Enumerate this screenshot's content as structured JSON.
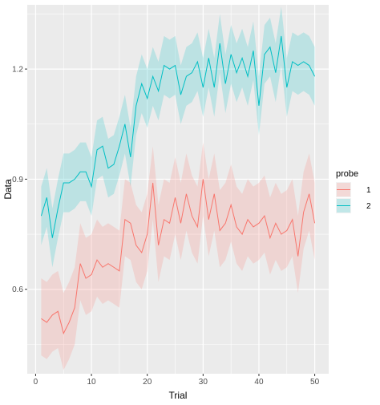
{
  "chart_data": {
    "type": "line",
    "xlabel": "Trial",
    "ylabel": "Data",
    "xlim": [
      -1.5,
      52.5
    ],
    "ylim": [
      0.37,
      1.375
    ],
    "xticks": [
      0,
      10,
      20,
      30,
      40,
      50
    ],
    "yticks": [
      0.6,
      0.9,
      1.2
    ],
    "ytick_labels": [
      "0.6",
      "0.9",
      "1.2"
    ],
    "grid": true,
    "background": "#ebebeb",
    "legend": {
      "title": "probe",
      "position": "right"
    },
    "series": [
      {
        "name": "1",
        "color": "#f8766d",
        "x": [
          1,
          2,
          3,
          4,
          5,
          6,
          7,
          8,
          9,
          10,
          11,
          12,
          13,
          14,
          15,
          16,
          17,
          18,
          19,
          20,
          21,
          22,
          23,
          24,
          25,
          26,
          27,
          28,
          29,
          30,
          31,
          32,
          33,
          34,
          35,
          36,
          37,
          38,
          39,
          40,
          41,
          42,
          43,
          44,
          45,
          46,
          47,
          48,
          49,
          50
        ],
        "y": [
          0.52,
          0.51,
          0.53,
          0.54,
          0.48,
          0.51,
          0.55,
          0.67,
          0.63,
          0.64,
          0.68,
          0.66,
          0.67,
          0.66,
          0.65,
          0.79,
          0.78,
          0.72,
          0.7,
          0.75,
          0.89,
          0.72,
          0.79,
          0.78,
          0.85,
          0.78,
          0.86,
          0.8,
          0.77,
          0.9,
          0.79,
          0.86,
          0.76,
          0.78,
          0.83,
          0.77,
          0.75,
          0.79,
          0.77,
          0.78,
          0.8,
          0.74,
          0.78,
          0.75,
          0.76,
          0.79,
          0.69,
          0.81,
          0.86,
          0.78
        ],
        "lower": [
          0.42,
          0.41,
          0.43,
          0.44,
          0.38,
          0.41,
          0.45,
          0.57,
          0.53,
          0.54,
          0.58,
          0.56,
          0.57,
          0.56,
          0.55,
          0.69,
          0.68,
          0.62,
          0.6,
          0.65,
          0.79,
          0.62,
          0.69,
          0.68,
          0.75,
          0.68,
          0.76,
          0.7,
          0.67,
          0.8,
          0.69,
          0.76,
          0.66,
          0.68,
          0.73,
          0.67,
          0.65,
          0.69,
          0.67,
          0.68,
          0.7,
          0.64,
          0.68,
          0.65,
          0.66,
          0.69,
          0.59,
          0.71,
          0.76,
          0.68
        ],
        "upper": [
          0.63,
          0.62,
          0.64,
          0.65,
          0.59,
          0.62,
          0.66,
          0.78,
          0.74,
          0.75,
          0.79,
          0.77,
          0.78,
          0.77,
          0.76,
          0.9,
          0.89,
          0.83,
          0.81,
          0.86,
          0.99,
          0.83,
          0.9,
          0.89,
          0.96,
          0.89,
          0.97,
          0.91,
          0.88,
          1.0,
          0.9,
          0.97,
          0.87,
          0.89,
          0.94,
          0.88,
          0.86,
          0.9,
          0.88,
          0.89,
          0.91,
          0.85,
          0.89,
          0.86,
          0.87,
          0.9,
          0.8,
          0.92,
          0.97,
          0.89
        ]
      },
      {
        "name": "2",
        "color": "#00bfc4",
        "x": [
          1,
          2,
          3,
          4,
          5,
          6,
          7,
          8,
          9,
          10,
          11,
          12,
          13,
          14,
          15,
          16,
          17,
          18,
          19,
          20,
          21,
          22,
          23,
          24,
          25,
          26,
          27,
          28,
          29,
          30,
          31,
          32,
          33,
          34,
          35,
          36,
          37,
          38,
          39,
          40,
          41,
          42,
          43,
          44,
          45,
          46,
          47,
          48,
          49,
          50
        ],
        "y": [
          0.8,
          0.85,
          0.74,
          0.82,
          0.89,
          0.89,
          0.9,
          0.92,
          0.92,
          0.88,
          0.98,
          0.99,
          0.93,
          0.94,
          0.99,
          1.05,
          0.96,
          1.1,
          1.16,
          1.12,
          1.18,
          1.14,
          1.21,
          1.2,
          1.21,
          1.13,
          1.18,
          1.19,
          1.22,
          1.15,
          1.23,
          1.15,
          1.27,
          1.16,
          1.24,
          1.19,
          1.23,
          1.18,
          1.25,
          1.1,
          1.24,
          1.26,
          1.19,
          1.29,
          1.15,
          1.22,
          1.21,
          1.22,
          1.21,
          1.18
        ],
        "lower": [
          0.72,
          0.77,
          0.66,
          0.74,
          0.81,
          0.81,
          0.82,
          0.84,
          0.84,
          0.8,
          0.9,
          0.91,
          0.85,
          0.86,
          0.91,
          0.97,
          0.88,
          1.02,
          1.08,
          1.04,
          1.1,
          1.06,
          1.13,
          1.12,
          1.13,
          1.05,
          1.1,
          1.11,
          1.14,
          1.07,
          1.15,
          1.07,
          1.19,
          1.08,
          1.16,
          1.11,
          1.15,
          1.1,
          1.17,
          1.02,
          1.16,
          1.18,
          1.11,
          1.21,
          1.07,
          1.14,
          1.13,
          1.14,
          1.13,
          1.1
        ],
        "upper": [
          0.88,
          0.93,
          0.82,
          0.9,
          0.97,
          0.97,
          0.98,
          1.0,
          1.0,
          0.96,
          1.06,
          1.07,
          1.01,
          1.02,
          1.07,
          1.13,
          1.04,
          1.18,
          1.24,
          1.2,
          1.26,
          1.22,
          1.29,
          1.28,
          1.29,
          1.21,
          1.26,
          1.27,
          1.3,
          1.23,
          1.31,
          1.23,
          1.35,
          1.24,
          1.32,
          1.27,
          1.31,
          1.26,
          1.33,
          1.18,
          1.32,
          1.34,
          1.27,
          1.37,
          1.23,
          1.3,
          1.29,
          1.3,
          1.29,
          1.26
        ]
      }
    ]
  }
}
